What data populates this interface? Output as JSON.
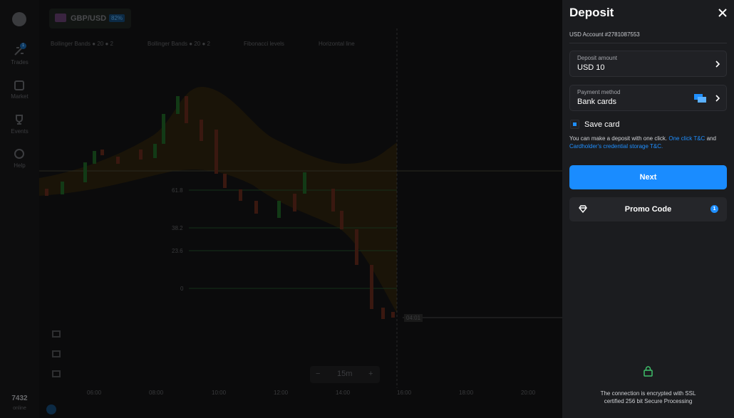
{
  "sidebar": {
    "items": [
      {
        "label": "Trades",
        "badge": 1
      },
      {
        "label": "Market"
      },
      {
        "label": "Events"
      },
      {
        "label": "Help"
      }
    ],
    "online_count": 7432,
    "online_label": "online"
  },
  "asset": {
    "name": "GBP/USD",
    "payout": "82%"
  },
  "indicators": [
    {
      "name": "Bollinger Bands",
      "period": 20,
      "deviation": 2
    },
    {
      "name": "Bollinger Bands",
      "period": 20,
      "deviation": 2
    },
    {
      "name": "Fibonacci levels"
    },
    {
      "name": "Horizontal line"
    }
  ],
  "chart": {
    "fib_levels": [
      "61.8",
      "38.2",
      "23.6",
      "0"
    ],
    "time_labels": [
      "06:00",
      "08:00",
      "10:00",
      "12:00",
      "14:00",
      "16:00",
      "18:00",
      "20:00"
    ],
    "countdown": "04:01",
    "zoom_out": "−",
    "timeframe": "15m",
    "zoom_in": "+"
  },
  "deposit": {
    "title": "Deposit",
    "account": "USD Account #2781087553",
    "amount_label": "Deposit amount",
    "amount": "USD 10",
    "method_label": "Payment method",
    "method": "Bank cards",
    "save_card": "Save card",
    "note_text": "You can make a deposit with one click.",
    "note_link1": "One click T&C",
    "note_and": "and",
    "note_link2": "Cardholder's credential storage T&C.",
    "next": "Next",
    "promo": "Promo Code",
    "promo_badge": 1,
    "ssl_line1": "The connection is encrypted with SSL",
    "ssl_line2": "certified 256 bit Secure Processing"
  }
}
